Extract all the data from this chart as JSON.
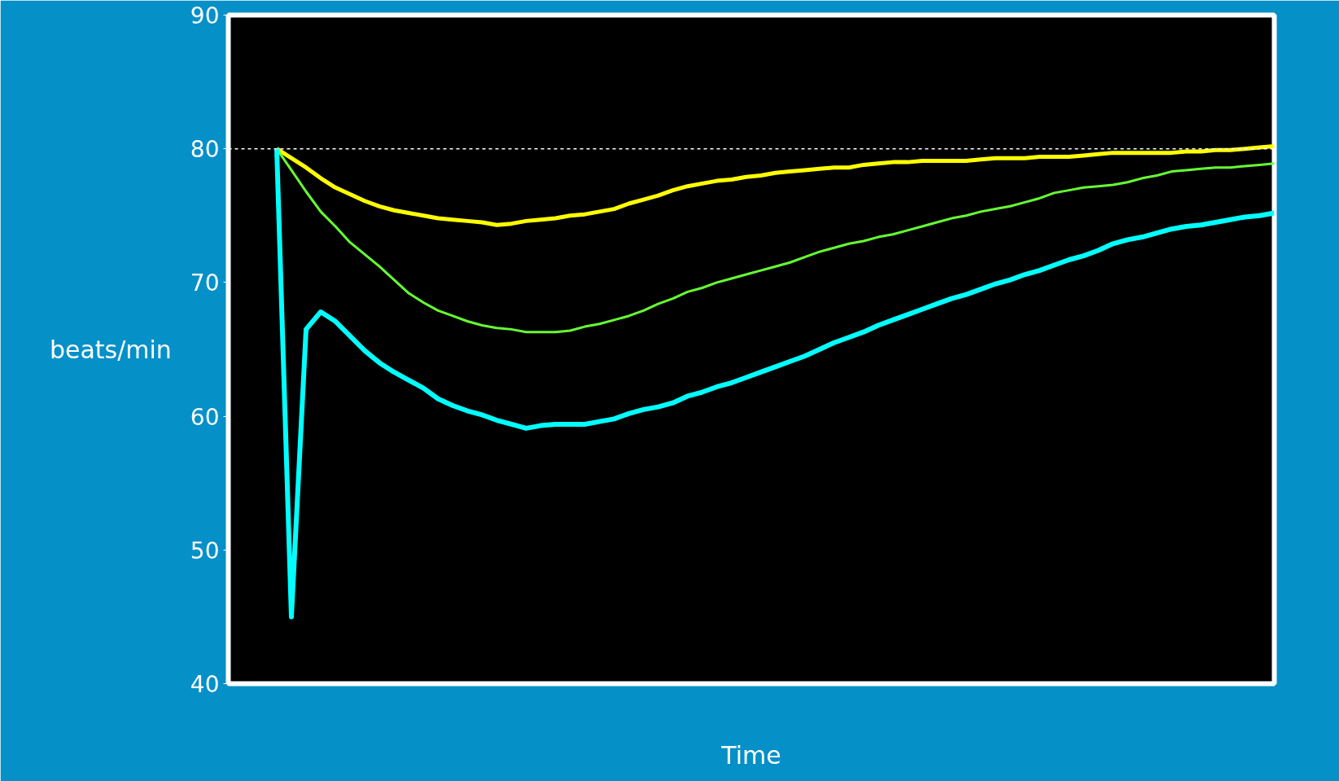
{
  "chart_data": {
    "type": "line",
    "xlabel": "Time",
    "ylabel": "beats/min",
    "categories": [
      null,
      null,
      null,
      null,
      null,
      null,
      null,
      null,
      null,
      null,
      null,
      null,
      null,
      null,
      null,
      null,
      null,
      null,
      null,
      null,
      null,
      null,
      null,
      null,
      null,
      null,
      null,
      null,
      null,
      null,
      null,
      null,
      null,
      null,
      null,
      null,
      null,
      null,
      null,
      null,
      null,
      null,
      null,
      null,
      null,
      null,
      null,
      null,
      null,
      null,
      null,
      null,
      null,
      null,
      null,
      null,
      null,
      null,
      null,
      null,
      null,
      null,
      null,
      null,
      null,
      null,
      null,
      null,
      null
    ],
    "ylim": [
      40,
      90
    ],
    "yticks": [
      40,
      50,
      60,
      70,
      80,
      90
    ],
    "grid": false,
    "line_style": "solid",
    "ref_lines": [
      {
        "axis": "y",
        "value": 80,
        "color": "#ffffff",
        "line_style": "dashed"
      }
    ],
    "series": [
      {
        "color": "#ffff00",
        "values": [
          80.0,
          79.3,
          78.6,
          77.8,
          77.1,
          76.6,
          76.1,
          75.7,
          75.4,
          75.2,
          75.0,
          74.8,
          74.7,
          74.6,
          74.5,
          74.3,
          74.4,
          74.6,
          74.7,
          74.8,
          75.0,
          75.1,
          75.3,
          75.5,
          75.9,
          76.2,
          76.5,
          76.9,
          77.2,
          77.4,
          77.6,
          77.7,
          77.9,
          78.0,
          78.2,
          78.3,
          78.4,
          78.5,
          78.6,
          78.6,
          78.8,
          78.9,
          79.0,
          79.0,
          79.1,
          79.1,
          79.1,
          79.1,
          79.2,
          79.3,
          79.3,
          79.3,
          79.4,
          79.4,
          79.4,
          79.5,
          79.6,
          79.7,
          79.7,
          79.7,
          79.7,
          79.7,
          79.8,
          79.8,
          79.9,
          79.9,
          80.0,
          80.1,
          80.2
        ]
      },
      {
        "color": "#66ff33",
        "values": [
          80.0,
          78.4,
          76.8,
          75.3,
          74.2,
          73.0,
          72.1,
          71.2,
          70.2,
          69.2,
          68.5,
          67.9,
          67.5,
          67.1,
          66.8,
          66.6,
          66.5,
          66.3,
          66.3,
          66.3,
          66.4,
          66.7,
          66.9,
          67.2,
          67.5,
          67.9,
          68.4,
          68.8,
          69.3,
          69.6,
          70.0,
          70.3,
          70.6,
          70.9,
          71.2,
          71.5,
          71.9,
          72.3,
          72.6,
          72.9,
          73.1,
          73.4,
          73.6,
          73.9,
          74.2,
          74.5,
          74.8,
          75.0,
          75.3,
          75.5,
          75.7,
          76.0,
          76.3,
          76.7,
          76.9,
          77.1,
          77.2,
          77.3,
          77.5,
          77.8,
          78.0,
          78.3,
          78.4,
          78.5,
          78.6,
          78.6,
          78.7,
          78.8,
          78.9
        ]
      },
      {
        "color": "#00ffff",
        "values": [
          80.0,
          45.0,
          66.5,
          67.8,
          67.1,
          66.0,
          64.9,
          64.0,
          63.3,
          62.7,
          62.1,
          61.3,
          60.8,
          60.4,
          60.1,
          59.7,
          59.4,
          59.1,
          59.3,
          59.4,
          59.4,
          59.4,
          59.6,
          59.8,
          60.2,
          60.5,
          60.7,
          61.0,
          61.5,
          61.8,
          62.2,
          62.5,
          62.9,
          63.3,
          63.7,
          64.1,
          64.5,
          65.0,
          65.5,
          65.9,
          66.3,
          66.8,
          67.2,
          67.6,
          68.0,
          68.4,
          68.8,
          69.1,
          69.5,
          69.9,
          70.2,
          70.6,
          70.9,
          71.3,
          71.7,
          72.0,
          72.4,
          72.9,
          73.2,
          73.4,
          73.7,
          74.0,
          74.2,
          74.3,
          74.5,
          74.7,
          74.9,
          75.0,
          75.2
        ]
      }
    ]
  }
}
